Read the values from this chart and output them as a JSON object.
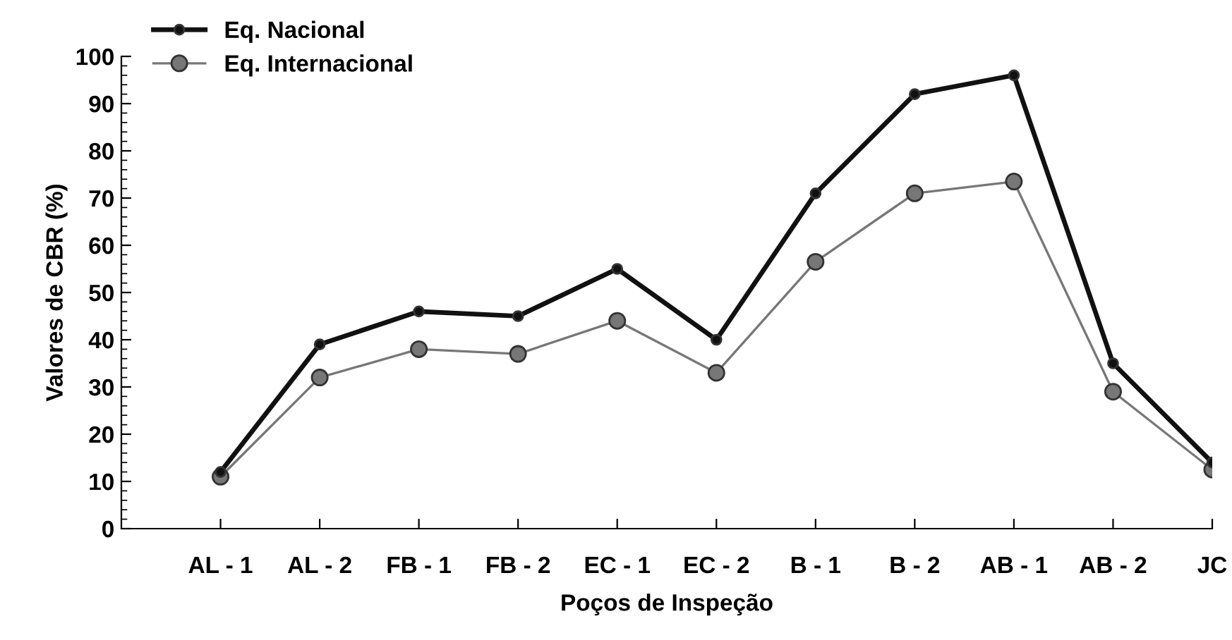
{
  "chart_data": {
    "type": "line",
    "xlabel": "Poços de Inspeção",
    "ylabel": "Valores de CBR (%)",
    "categories": [
      "AL - 1",
      "AL - 2",
      "FB - 1",
      "FB - 2",
      "EC - 1",
      "EC - 2",
      "B - 1",
      "B - 2",
      "AB - 1",
      "AB - 2",
      "JC"
    ],
    "series": [
      {
        "name": "Eq. Nacional",
        "color": "#111111",
        "values": [
          12,
          39,
          46,
          45,
          55,
          40,
          71,
          92,
          96,
          35,
          14
        ]
      },
      {
        "name": "Eq. Internacional",
        "color": "#777777",
        "values": [
          11,
          32,
          38,
          37,
          44,
          33,
          56.5,
          71,
          73.5,
          29,
          12.5
        ]
      }
    ],
    "ylim": [
      0,
      100
    ],
    "yticks": [
      0,
      10,
      20,
      30,
      40,
      50,
      60,
      70,
      80,
      90,
      100
    ],
    "grid": false,
    "legend": "top left",
    "marker": "circle",
    "line_style": "solid"
  }
}
